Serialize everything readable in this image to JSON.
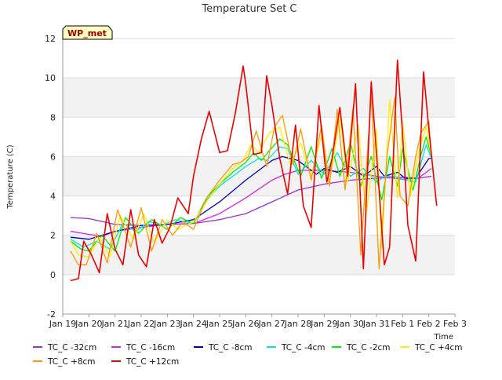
{
  "colors": {
    "band": "#f2f2f2",
    "grid": "#dddddd",
    "axis": "#999999",
    "badge_fill": "#ffffc0",
    "badge_text": "#990000"
  },
  "badge": {
    "text": "WP_met"
  },
  "chart_data": {
    "type": "line",
    "title": "Temperature Set C",
    "xlabel": "Time",
    "ylabel": "Temperature (C)",
    "ylim": [
      -2,
      12
    ],
    "xlim": [
      0,
      15
    ],
    "yticks": [
      -2,
      0,
      2,
      4,
      6,
      8,
      10,
      12
    ],
    "xticks": [
      0,
      1,
      2,
      3,
      4,
      5,
      6,
      7,
      8,
      9,
      10,
      11,
      12,
      13,
      14,
      15
    ],
    "xtick_labels": [
      "Jan 19",
      "Jan 20",
      "Jan 21",
      "Jan 22",
      "Jan 23",
      "Jan 24",
      "Jan 25",
      "Jan 26",
      "Jan 27",
      "Jan 28",
      "Jan 29",
      "Jan 30",
      "Jan 31",
      "Feb 1",
      "Feb 2",
      "Feb 3"
    ],
    "x_units": "days since Jan 19 00:00",
    "grid": true,
    "legend_placement": "bottom",
    "series": [
      {
        "name": "TC_C -32cm",
        "color": "#9b30d9",
        "x": [
          0.3,
          1,
          2,
          3,
          4,
          5,
          6,
          7,
          8,
          9,
          10,
          11,
          12,
          13,
          13.6,
          14.1
        ],
        "y": [
          2.9,
          2.85,
          2.55,
          2.5,
          2.55,
          2.6,
          2.8,
          3.1,
          3.7,
          4.3,
          4.6,
          4.8,
          4.9,
          4.95,
          4.9,
          5.0
        ]
      },
      {
        "name": "TC_C -16cm",
        "color": "#e020e0",
        "x": [
          0.3,
          1,
          1.5,
          2,
          3,
          4,
          5,
          6,
          7,
          8,
          8.5,
          9,
          10,
          11,
          12,
          13,
          13.6,
          14.1
        ],
        "y": [
          2.2,
          2.05,
          1.95,
          2.2,
          2.4,
          2.55,
          2.6,
          3.1,
          3.9,
          4.8,
          5.1,
          5.3,
          5.3,
          5.2,
          5.0,
          4.85,
          4.9,
          5.4
        ]
      },
      {
        "name": "TC_C -8cm",
        "color": "#0000cc",
        "x": [
          0.3,
          1,
          2,
          3,
          4,
          5,
          6,
          7,
          8,
          8.4,
          9,
          9.7,
          10,
          10.5,
          11,
          11.5,
          12,
          12.3,
          12.8,
          13.1,
          13.5,
          14,
          14.1
        ],
        "y": [
          1.9,
          1.8,
          2.2,
          2.5,
          2.55,
          2.8,
          3.7,
          4.8,
          5.8,
          6.0,
          5.8,
          5.1,
          5.4,
          5.2,
          5.5,
          5.0,
          5.5,
          5.0,
          5.2,
          4.9,
          4.9,
          5.9,
          5.9
        ]
      },
      {
        "name": "TC_C -4cm",
        "color": "#00e5e5",
        "x": [
          0.3,
          0.8,
          1.3,
          1.8,
          2.3,
          2.8,
          3.3,
          3.8,
          4.3,
          5,
          5.5,
          6,
          6.5,
          7,
          7.5,
          7.8,
          8.3,
          8.6,
          9,
          9.5,
          10,
          10.5,
          11,
          11.5,
          12,
          12.3,
          12.7,
          13.1,
          13.5,
          13.9,
          14.1
        ],
        "y": [
          1.8,
          1.4,
          1.7,
          1.3,
          2.6,
          2.2,
          2.7,
          2.5,
          2.8,
          2.6,
          3.8,
          4.5,
          5.0,
          5.5,
          5.9,
          5.8,
          6.5,
          6.4,
          5.1,
          5.8,
          5.1,
          6.2,
          5.0,
          5.4,
          4.7,
          5.0,
          5.0,
          4.8,
          4.7,
          6.6,
          5.9
        ]
      },
      {
        "name": "TC_C -2cm",
        "color": "#00ee00",
        "x": [
          0.3,
          0.7,
          1,
          1.5,
          2,
          2.4,
          2.9,
          3.4,
          4,
          4.5,
          5,
          5.5,
          6,
          6.5,
          7,
          7.3,
          7.6,
          7.9,
          8.3,
          8.6,
          9.1,
          9.5,
          9.9,
          10.3,
          10.6,
          11,
          11.4,
          11.8,
          12.2,
          12.5,
          12.8,
          13,
          13.4,
          13.7,
          13.9,
          14.1
        ],
        "y": [
          1.7,
          1.3,
          1.2,
          2.0,
          1.2,
          2.9,
          2.1,
          2.8,
          2.3,
          2.9,
          2.6,
          3.9,
          4.6,
          5.2,
          5.7,
          6.2,
          5.8,
          6.3,
          6.9,
          6.6,
          5.0,
          6.5,
          4.9,
          6.4,
          5.0,
          6.7,
          4.5,
          6.0,
          3.8,
          6.0,
          4.5,
          6.4,
          4.3,
          6.1,
          7.0,
          6.0
        ]
      },
      {
        "name": "TC_C +4cm",
        "color": "#ffee00",
        "x": [
          0.3,
          0.6,
          1,
          1.4,
          1.8,
          2.2,
          2.7,
          3.1,
          3.5,
          4,
          4.4,
          5,
          5.5,
          6,
          6.5,
          6.9,
          7.2,
          7.5,
          7.9,
          8.3,
          8.7,
          9.1,
          9.5,
          9.9,
          10.2,
          10.6,
          10.9,
          11.3,
          11.6,
          12,
          12.2,
          12.5,
          12.8,
          13,
          13.3,
          13.6,
          13.9,
          14.1
        ],
        "y": [
          1.7,
          1.0,
          0.9,
          1.9,
          0.9,
          3.0,
          1.8,
          3.1,
          1.6,
          2.8,
          2.3,
          2.7,
          3.7,
          4.6,
          5.4,
          5.8,
          6.6,
          6.2,
          7.2,
          7.5,
          5.6,
          6.7,
          5.0,
          7.1,
          4.6,
          8.0,
          4.7,
          7.6,
          3.0,
          7.4,
          1.3,
          8.9,
          3.9,
          7.8,
          4.0,
          6.2,
          7.5,
          6.0
        ]
      },
      {
        "name": "TC_C +8cm",
        "color": "#ff9900",
        "x": [
          0.3,
          0.6,
          0.9,
          1.3,
          1.7,
          2.1,
          2.6,
          3,
          3.4,
          3.8,
          4.2,
          4.6,
          5,
          5.5,
          6,
          6.5,
          6.8,
          7.1,
          7.4,
          7.8,
          8.1,
          8.4,
          8.8,
          9.1,
          9.5,
          9.9,
          10.2,
          10.5,
          10.8,
          11.1,
          11.4,
          11.8,
          12.1,
          12.4,
          12.7,
          12.9,
          13.2,
          13.5,
          13.7,
          14,
          14.1
        ],
        "y": [
          1.2,
          0.5,
          0.5,
          2.1,
          0.6,
          3.3,
          1.4,
          3.4,
          1.2,
          2.8,
          2.0,
          2.7,
          2.3,
          3.9,
          4.8,
          5.6,
          5.7,
          6.0,
          7.3,
          5.5,
          7.5,
          8.1,
          5.6,
          7.4,
          4.8,
          7.6,
          4.5,
          8.4,
          4.3,
          8.5,
          1.0,
          9.2,
          0.3,
          6.0,
          9.0,
          4.0,
          3.5,
          6.0,
          7.2,
          7.8,
          6.0
        ]
      },
      {
        "name": "TC_C +12cm",
        "color": "#ee0000",
        "x": [
          0.3,
          0.6,
          0.8,
          1.1,
          1.4,
          1.7,
          2,
          2.3,
          2.6,
          2.9,
          3.2,
          3.5,
          3.8,
          4.1,
          4.4,
          4.8,
          5,
          5.3,
          5.6,
          6,
          6.3,
          6.6,
          6.9,
          7,
          7.3,
          7.6,
          7.8,
          8,
          8.3,
          8.6,
          8.9,
          9.2,
          9.5,
          9.8,
          10.1,
          10.3,
          10.6,
          10.9,
          11.2,
          11.5,
          11.8,
          12.1,
          12.3,
          12.5,
          12.8,
          13,
          13.2,
          13.5,
          13.8,
          14,
          14.3
        ],
        "y": [
          -0.3,
          -0.2,
          1.7,
          1.0,
          0.1,
          3.1,
          1.3,
          0.5,
          3.3,
          1.0,
          0.4,
          2.8,
          1.6,
          2.4,
          3.9,
          3.1,
          5.0,
          6.9,
          8.3,
          6.2,
          6.3,
          8.2,
          10.6,
          9.7,
          6.1,
          6.2,
          10.1,
          8.6,
          5.9,
          4.1,
          7.6,
          3.5,
          2.4,
          8.6,
          4.7,
          5.9,
          8.5,
          5.0,
          9.7,
          0.3,
          9.8,
          4.3,
          0.5,
          1.4,
          10.9,
          7.1,
          2.5,
          0.7,
          10.3,
          7.4,
          3.5
        ]
      }
    ]
  }
}
